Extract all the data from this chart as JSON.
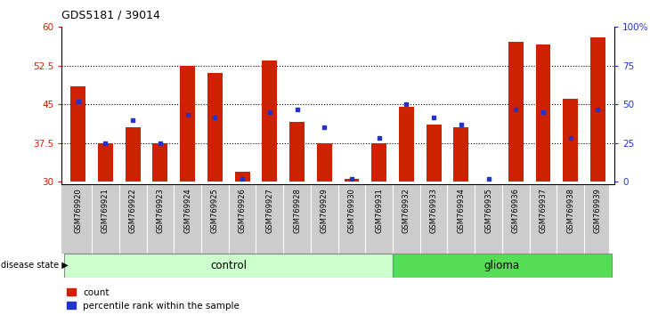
{
  "title": "GDS5181 / 39014",
  "samples": [
    "GSM769920",
    "GSM769921",
    "GSM769922",
    "GSM769923",
    "GSM769924",
    "GSM769925",
    "GSM769926",
    "GSM769927",
    "GSM769928",
    "GSM769929",
    "GSM769930",
    "GSM769931",
    "GSM769932",
    "GSM769933",
    "GSM769934",
    "GSM769935",
    "GSM769936",
    "GSM769937",
    "GSM769938",
    "GSM769939"
  ],
  "bar_heights": [
    48.5,
    37.5,
    40.5,
    37.5,
    52.5,
    51.0,
    32.0,
    53.5,
    41.5,
    37.5,
    30.5,
    37.5,
    44.5,
    41.0,
    40.5,
    30.0,
    57.0,
    56.5,
    46.0,
    58.0
  ],
  "blue_dots": [
    45.5,
    37.5,
    42.0,
    37.5,
    43.0,
    42.5,
    30.5,
    43.5,
    44.0,
    40.5,
    30.5,
    38.5,
    45.0,
    42.5,
    41.0,
    30.5,
    44.0,
    43.5,
    38.5,
    44.0
  ],
  "group_labels": [
    "control",
    "glioma"
  ],
  "control_indices": [
    0,
    11
  ],
  "glioma_indices": [
    12,
    19
  ],
  "ylim": [
    29.5,
    60
  ],
  "bar_bottom": 30,
  "y_ticks_left": [
    30,
    37.5,
    45,
    52.5,
    60
  ],
  "ytick_labels_left": [
    "30",
    "37.5",
    "45",
    "52.5",
    "60"
  ],
  "ytick_labels_right": [
    "0",
    "25",
    "50",
    "75",
    "100%"
  ],
  "hlines": [
    37.5,
    45.0,
    52.5
  ],
  "bar_color": "#CC2200",
  "dot_color": "#2233CC",
  "control_color": "#CCFFCC",
  "glioma_color": "#55DD55",
  "sample_box_color": "#CCCCCC",
  "legend_labels": [
    "count",
    "percentile rank within the sample"
  ],
  "disease_state_label": "disease state"
}
